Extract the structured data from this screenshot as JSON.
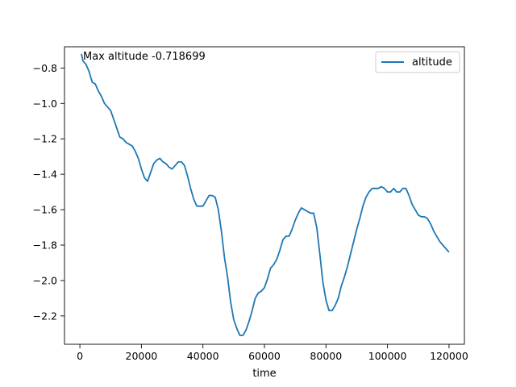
{
  "chart_data": {
    "type": "line",
    "title": "",
    "xlabel": "time",
    "ylabel": "",
    "xlim": [
      -5000,
      125000
    ],
    "ylim": [
      -2.36,
      -0.68
    ],
    "xticks": [
      0,
      20000,
      40000,
      60000,
      80000,
      100000,
      120000
    ],
    "xtick_labels": [
      "0",
      "20000",
      "40000",
      "60000",
      "80000",
      "100000",
      "120000"
    ],
    "yticks": [
      -2.2,
      -2.0,
      -1.8,
      -1.6,
      -1.4,
      -1.2,
      -1.0,
      -0.8
    ],
    "ytick_labels": [
      "−2.2",
      "−2.0",
      "−1.8",
      "−1.6",
      "−1.4",
      "−1.2",
      "−1.0",
      "−0.8"
    ],
    "grid": false,
    "legend_position": "top-right",
    "annotation": "Max altitude -0.718699",
    "series": [
      {
        "name": "altitude",
        "color": "#1f77b4",
        "x": [
          500,
          1000,
          2000,
          3000,
          4000,
          5000,
          6000,
          7000,
          8000,
          9000,
          10000,
          11000,
          12000,
          13000,
          14000,
          15000,
          16000,
          17000,
          18000,
          19000,
          20000,
          21000,
          22000,
          23000,
          24000,
          25000,
          26000,
          27000,
          28000,
          29000,
          30000,
          31000,
          32000,
          33000,
          34000,
          35000,
          36000,
          37000,
          38000,
          39000,
          40000,
          41000,
          42000,
          43000,
          44000,
          45000,
          46000,
          47000,
          48000,
          49000,
          50000,
          51000,
          52000,
          53000,
          54000,
          55000,
          56000,
          57000,
          58000,
          59000,
          60000,
          61000,
          62000,
          63000,
          64000,
          65000,
          66000,
          67000,
          68000,
          69000,
          70000,
          71000,
          72000,
          73000,
          74000,
          75000,
          76000,
          77000,
          78000,
          79000,
          80000,
          81000,
          82000,
          83000,
          84000,
          85000,
          86000,
          87000,
          88000,
          89000,
          90000,
          91000,
          92000,
          93000,
          94000,
          95000,
          96000,
          97000,
          98000,
          99000,
          100000,
          101000,
          102000,
          103000,
          104000,
          105000,
          106000,
          107000,
          108000,
          109000,
          110000,
          111000,
          112000,
          113000,
          114000,
          115000,
          116000,
          117000,
          118000,
          119000,
          120000
        ],
        "y": [
          -0.72,
          -0.76,
          -0.78,
          -0.82,
          -0.88,
          -0.89,
          -0.93,
          -0.96,
          -1.0,
          -1.02,
          -1.04,
          -1.09,
          -1.14,
          -1.19,
          -1.2,
          -1.22,
          -1.23,
          -1.24,
          -1.27,
          -1.31,
          -1.37,
          -1.42,
          -1.44,
          -1.39,
          -1.34,
          -1.32,
          -1.31,
          -1.33,
          -1.34,
          -1.36,
          -1.37,
          -1.35,
          -1.33,
          -1.33,
          -1.35,
          -1.41,
          -1.48,
          -1.54,
          -1.58,
          -1.58,
          -1.58,
          -1.55,
          -1.52,
          -1.52,
          -1.53,
          -1.6,
          -1.72,
          -1.87,
          -1.98,
          -2.12,
          -2.22,
          -2.27,
          -2.31,
          -2.31,
          -2.28,
          -2.23,
          -2.17,
          -2.1,
          -2.07,
          -2.06,
          -2.04,
          -1.99,
          -1.93,
          -1.91,
          -1.88,
          -1.83,
          -1.77,
          -1.75,
          -1.75,
          -1.71,
          -1.66,
          -1.62,
          -1.59,
          -1.6,
          -1.61,
          -1.62,
          -1.62,
          -1.7,
          -1.85,
          -2.01,
          -2.11,
          -2.17,
          -2.17,
          -2.14,
          -2.1,
          -2.03,
          -1.98,
          -1.92,
          -1.85,
          -1.78,
          -1.71,
          -1.65,
          -1.58,
          -1.53,
          -1.5,
          -1.48,
          -1.48,
          -1.48,
          -1.47,
          -1.48,
          -1.5,
          -1.5,
          -1.48,
          -1.5,
          -1.5,
          -1.48,
          -1.48,
          -1.52,
          -1.57,
          -1.6,
          -1.63,
          -1.64,
          -1.64,
          -1.65,
          -1.68,
          -1.72,
          -1.75,
          -1.78,
          -1.8,
          -1.82,
          -1.84
        ]
      }
    ]
  }
}
